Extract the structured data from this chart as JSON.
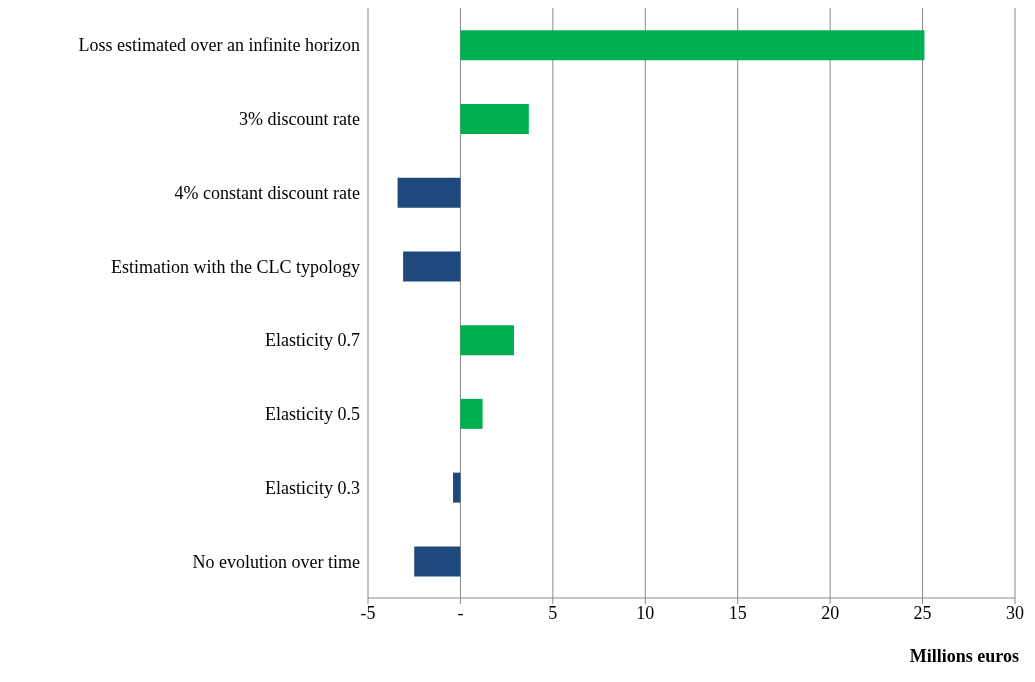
{
  "chart_data": {
    "type": "bar",
    "orientation": "horizontal",
    "categories": [
      "Loss estimated over an infinite horizon",
      "3% discount rate",
      "4% constant discount rate",
      "Estimation with the CLC typology",
      "Elasticity 0.7",
      "Elasticity 0.5",
      "Elasticity 0.3",
      "No evolution over time"
    ],
    "values": [
      25.1,
      3.7,
      -3.4,
      -3.1,
      2.9,
      1.2,
      -0.4,
      -2.5
    ],
    "colors": [
      "#00b050",
      "#00b050",
      "#1f497d",
      "#1f497d",
      "#00b050",
      "#00b050",
      "#1f497d",
      "#1f497d"
    ],
    "xlim": [
      -5,
      30
    ],
    "xticks": [
      -5,
      {
        "value": 0,
        "label": "-"
      },
      5,
      10,
      15,
      20,
      25,
      30
    ],
    "xlabel": "Millions euros",
    "grid": "x",
    "legend": false
  }
}
